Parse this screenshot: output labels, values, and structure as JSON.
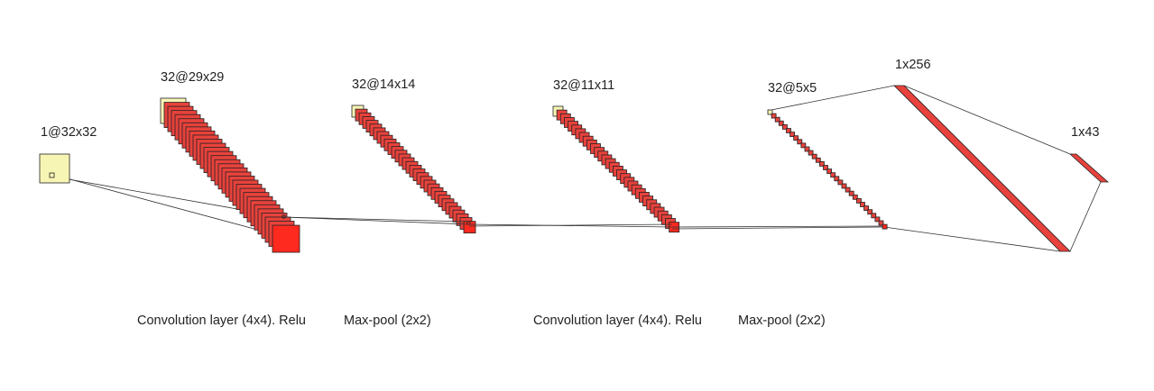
{
  "colors": {
    "input_fill": "#f7f5b4",
    "map_fill_back": "#f7f5b4",
    "map_fill": "#e8423c",
    "map_fill_front": "#ff2a1f",
    "stroke": "#222222",
    "line": "#333333",
    "text": "#222222"
  },
  "layers": [
    {
      "id": "input",
      "label": "1@32x32",
      "count": 1
    },
    {
      "id": "conv1",
      "label": "32@29x29",
      "count": 32
    },
    {
      "id": "pool1",
      "label": "32@14x14",
      "count": 32
    },
    {
      "id": "conv2",
      "label": "32@11x11",
      "count": 32
    },
    {
      "id": "pool2",
      "label": "32@5x5",
      "count": 32
    },
    {
      "id": "fc1",
      "label": "1x256",
      "count": 256
    },
    {
      "id": "fc2",
      "label": "1x43",
      "count": 43
    }
  ],
  "operations": [
    {
      "id": "op-conv1",
      "label": "Convolution layer (4x4). Relu"
    },
    {
      "id": "op-pool1",
      "label": "Max-pool (2x2)"
    },
    {
      "id": "op-conv2",
      "label": "Convolution layer (4x4). Relu"
    },
    {
      "id": "op-pool2",
      "label": "Max-pool (2x2)"
    }
  ]
}
